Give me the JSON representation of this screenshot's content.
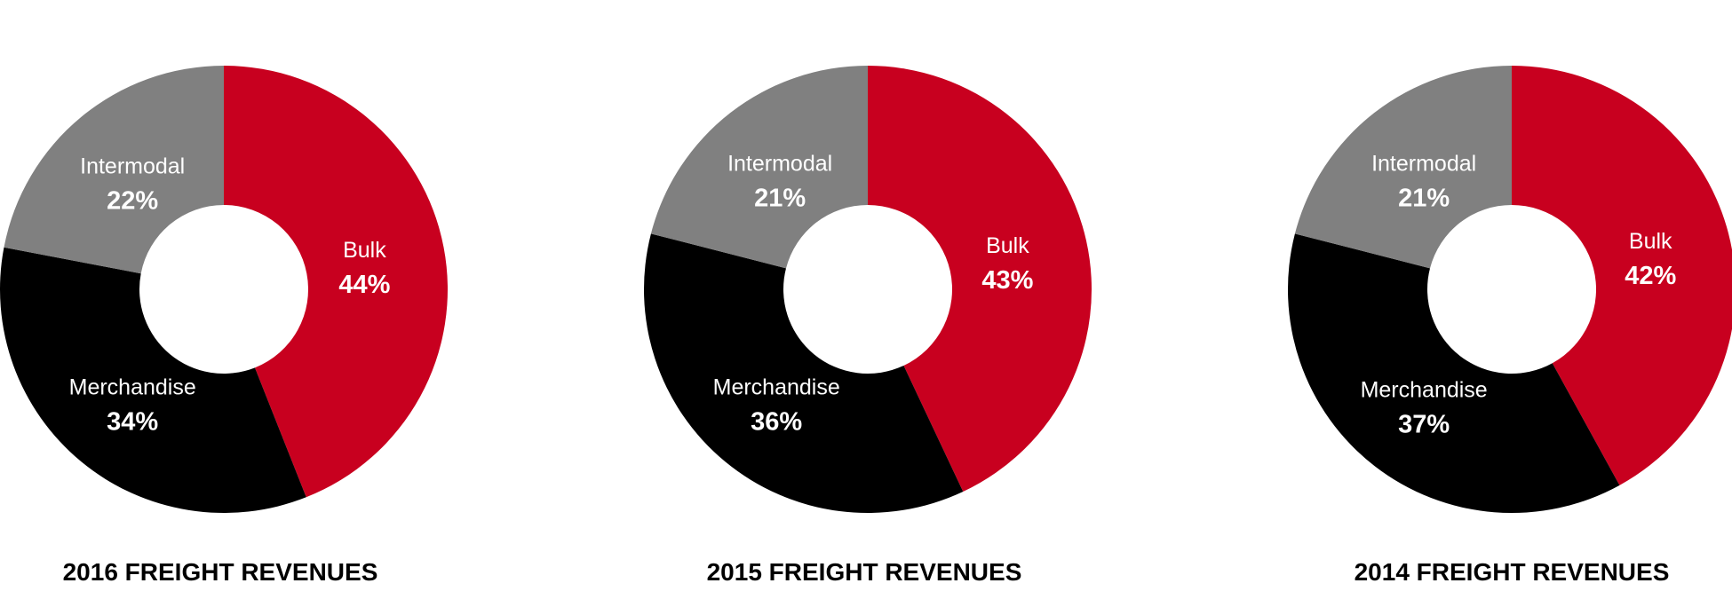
{
  "chart_data": [
    {
      "type": "pie",
      "title": "2016 FREIGHT REVENUES",
      "slices": [
        {
          "label": "Bulk",
          "value_label": "44%",
          "value": 44,
          "color": "#c8001f"
        },
        {
          "label": "Merchandise",
          "value_label": "34%",
          "value": 34,
          "color": "#000000"
        },
        {
          "label": "Intermodal",
          "value_label": "22%",
          "value": 22,
          "color": "#808080"
        }
      ]
    },
    {
      "type": "pie",
      "title": "2015 FREIGHT REVENUES",
      "slices": [
        {
          "label": "Bulk",
          "value_label": "43%",
          "value": 43,
          "color": "#c8001f"
        },
        {
          "label": "Merchandise",
          "value_label": "36%",
          "value": 36,
          "color": "#000000"
        },
        {
          "label": "Intermodal",
          "value_label": "21%",
          "value": 21,
          "color": "#808080"
        }
      ]
    },
    {
      "type": "pie",
      "title": "2014 FREIGHT REVENUES",
      "slices": [
        {
          "label": "Bulk",
          "value_label": "42%",
          "value": 42,
          "color": "#c8001f"
        },
        {
          "label": "Merchandise",
          "value_label": "37%",
          "value": 37,
          "color": "#000000"
        },
        {
          "label": "Intermodal",
          "value_label": "21%",
          "value": 21,
          "color": "#808080"
        }
      ]
    }
  ]
}
